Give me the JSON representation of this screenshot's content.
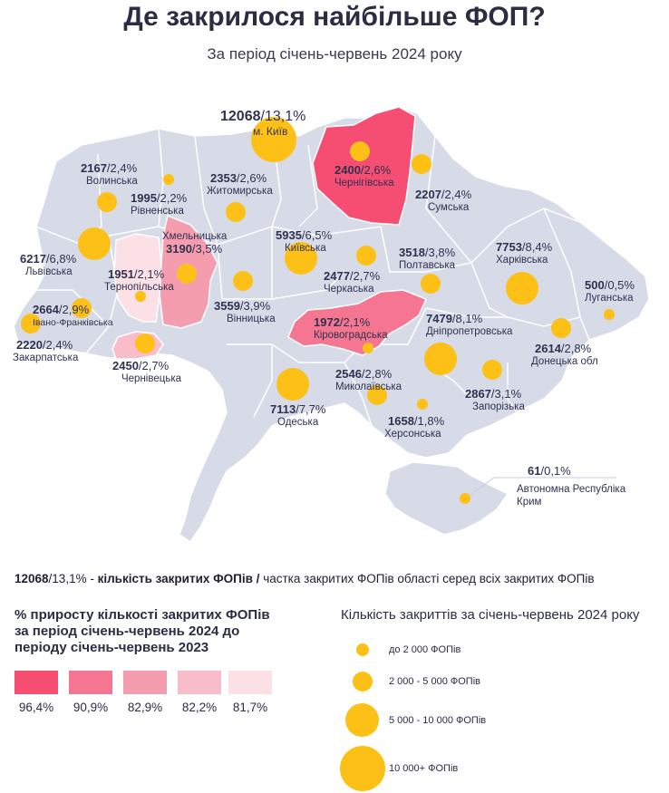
{
  "title": "Де закрилося найбільше ФОП?",
  "subtitle": "За період січень-червень 2024 року",
  "colors": {
    "country": "#d7dbe8",
    "border": "#ffffff",
    "bubble": "#fdc016",
    "growth": [
      "#f64d72",
      "#f57690",
      "#f49daf",
      "#f8bccb",
      "#fbe0e6"
    ]
  },
  "regions": [
    {
      "id": "kyiv-city",
      "value": "12068",
      "share": "13,1%",
      "name": "м. Київ",
      "size_class": 4
    },
    {
      "id": "chernihiv",
      "value": "2400",
      "share": "2,6%",
      "name": "Чернігівська",
      "size_class": 2,
      "growth_class": 0
    },
    {
      "id": "volyn",
      "value": "2167",
      "share": "2,4%",
      "name": "Волинська",
      "size_class": 2
    },
    {
      "id": "rivne",
      "value": "1995",
      "share": "2,2%",
      "name": "Рівненська",
      "size_class": 1
    },
    {
      "id": "zhytomyr",
      "value": "2353",
      "share": "2,6%",
      "name": "Житомирська",
      "size_class": 2
    },
    {
      "id": "sumy",
      "value": "2207",
      "share": "2,4%",
      "name": "Сумська",
      "size_class": 2
    },
    {
      "id": "khmelnytskyi",
      "value": "3190",
      "share": "3,5%",
      "name": "Хмельницька",
      "size_class": 2,
      "growth_class": 2
    },
    {
      "id": "kyiv-oblast",
      "value": "5935",
      "share": "6,5%",
      "name": "Київська",
      "size_class": 3
    },
    {
      "id": "lviv",
      "value": "6217",
      "share": "6,8%",
      "name": "Львівська",
      "size_class": 3
    },
    {
      "id": "ternopil",
      "value": "1951",
      "share": "2,1%",
      "name": "Тернопільська",
      "size_class": 1,
      "growth_class": 4
    },
    {
      "id": "poltava",
      "value": "3518",
      "share": "3,8%",
      "name": "Полтавська",
      "size_class": 2
    },
    {
      "id": "kharkiv",
      "value": "7753",
      "share": "8,4%",
      "name": "Харківська",
      "size_class": 3
    },
    {
      "id": "cherkasy",
      "value": "2477",
      "share": "2,7%",
      "name": "Черкаська",
      "size_class": 2
    },
    {
      "id": "luhansk",
      "value": "500",
      "share": "0,5%",
      "name": "Луганська",
      "size_class": 1
    },
    {
      "id": "ivano-frankivsk",
      "value": "2664",
      "share": "2,9%",
      "name": "Івано-Франківська",
      "size_class": 2
    },
    {
      "id": "vinnytsia",
      "value": "3559",
      "share": "3,9%",
      "name": "Вінницька",
      "size_class": 2
    },
    {
      "id": "kirovohrad",
      "value": "1972",
      "share": "2,1%",
      "name": "Кіровоградська",
      "size_class": 1,
      "growth_class": 1
    },
    {
      "id": "dnipro",
      "value": "7479",
      "share": "8,1%",
      "name": "Дніпропетровська",
      "size_class": 3
    },
    {
      "id": "zakarpattia",
      "value": "2220",
      "share": "2,4%",
      "name": "Закарпатська",
      "size_class": 2
    },
    {
      "id": "chernivtsi",
      "value": "2450",
      "share": "2,7%",
      "name": "Чернівецька",
      "size_class": 2,
      "growth_class": 3
    },
    {
      "id": "donetsk",
      "value": "2614",
      "share": "2,8%",
      "name": "Донецька обл",
      "size_class": 2
    },
    {
      "id": "mykolaiv",
      "value": "2546",
      "share": "2,8%",
      "name": "Миколаївська",
      "size_class": 2
    },
    {
      "id": "zaporizhzhia",
      "value": "2867",
      "share": "3,1%",
      "name": "Запорізька",
      "size_class": 2
    },
    {
      "id": "odesa",
      "value": "7113",
      "share": "7,7%",
      "name": "Одеська",
      "size_class": 3
    },
    {
      "id": "kherson",
      "value": "1658",
      "share": "1,8%",
      "name": "Херсонська",
      "size_class": 1
    },
    {
      "id": "crimea",
      "value": "61",
      "share": "0,1%",
      "name": "Автономна Республіка Крим",
      "size_class": 1
    }
  ],
  "legend": {
    "example_value": "12068",
    "example_share": "/13,1% - ",
    "count_label": "кількість закритих ФОПів /",
    "share_label": " частка закритих ФОПів області серед всіх закритих ФОПів",
    "growth_title": "% приросту кількості закритих ФОПів за період січень-червень 2024 до періоду січень-червень 2023",
    "growth_values": [
      "96,4%",
      "90,9%",
      "82,9%",
      "82,2%",
      "81,7%"
    ],
    "count_title": "Кількість закриттів за січень-червень 2024 року",
    "size_classes": [
      "до 2 000 ФОПів",
      "2 000 - 5 000 ФОПів",
      "5 000 - 10 000 ФОПів",
      "10 000+ ФОПів"
    ]
  }
}
